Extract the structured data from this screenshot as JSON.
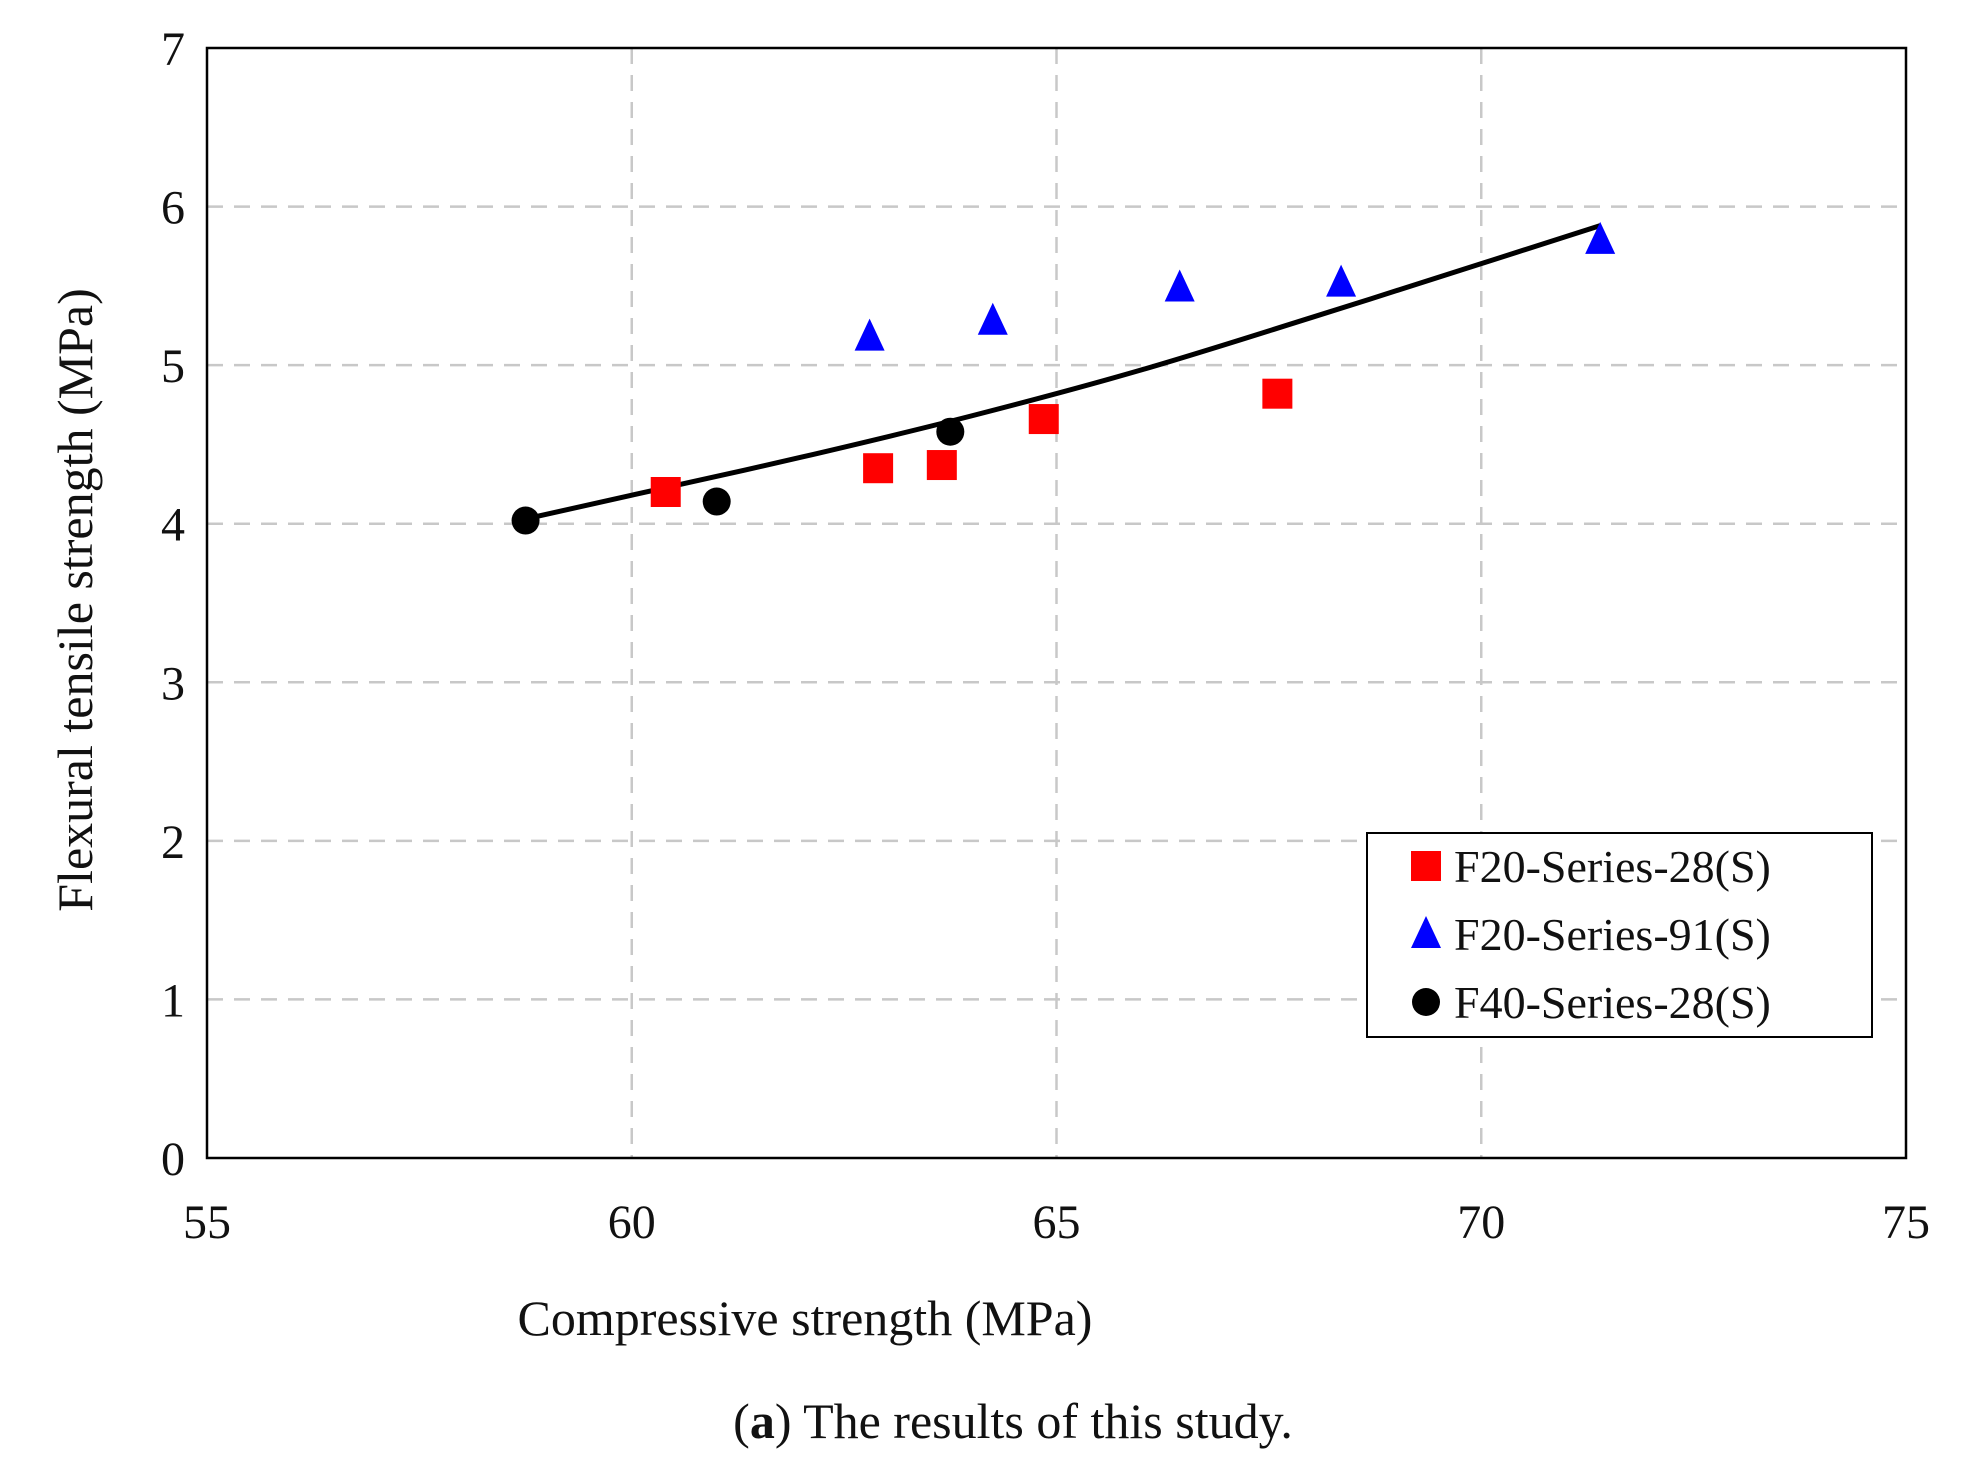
{
  "chart_data": {
    "type": "scatter",
    "caption": {
      "label": "a",
      "open": "(",
      "close": ")",
      "text": " The results of this study."
    },
    "xlabel": "Compressive strength (MPa)",
    "ylabel": "Flexural tensile strength (MPa)",
    "xlim": [
      55,
      75
    ],
    "ylim": [
      0,
      7
    ],
    "xticks": [
      55,
      60,
      65,
      70,
      75
    ],
    "yticks": [
      0,
      1,
      2,
      3,
      4,
      5,
      6,
      7
    ],
    "grid": true,
    "legend_position": "bottom-right",
    "series": [
      {
        "name": "F20-Series-28(S)",
        "marker": "square",
        "color": "#ff0000",
        "points": [
          {
            "x": 60.4,
            "y": 4.2
          },
          {
            "x": 62.9,
            "y": 4.35
          },
          {
            "x": 63.65,
            "y": 4.37
          },
          {
            "x": 64.85,
            "y": 4.66
          },
          {
            "x": 67.6,
            "y": 4.82
          }
        ]
      },
      {
        "name": "F20-Series-91(S)",
        "marker": "triangle",
        "color": "#0000ff",
        "points": [
          {
            "x": 62.8,
            "y": 5.18
          },
          {
            "x": 64.25,
            "y": 5.28
          },
          {
            "x": 66.45,
            "y": 5.49
          },
          {
            "x": 68.35,
            "y": 5.52
          },
          {
            "x": 71.4,
            "y": 5.79
          }
        ]
      },
      {
        "name": "F40-Series-28(S)",
        "marker": "circle",
        "color": "#000000",
        "points": [
          {
            "x": 58.75,
            "y": 4.02
          },
          {
            "x": 61.0,
            "y": 4.14
          },
          {
            "x": 63.75,
            "y": 4.58
          }
        ]
      }
    ],
    "fit_line": {
      "name": "fit",
      "color": "#000000",
      "points": [
        {
          "x": 58.75,
          "y": 4.03
        },
        {
          "x": 60.0,
          "y": 4.18
        },
        {
          "x": 62.0,
          "y": 4.42
        },
        {
          "x": 64.0,
          "y": 4.68
        },
        {
          "x": 66.0,
          "y": 4.97
        },
        {
          "x": 68.0,
          "y": 5.3
        },
        {
          "x": 70.0,
          "y": 5.64
        },
        {
          "x": 71.4,
          "y": 5.88
        }
      ]
    }
  }
}
